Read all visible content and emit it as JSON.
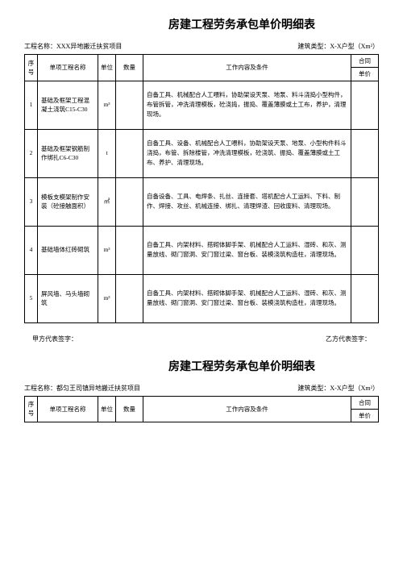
{
  "doc1": {
    "title": "房建工程劳务承包单价明细表",
    "project_label": "工程名称：",
    "project_name": "XXX异地搬迁扶贫项目",
    "building_type_label": "建筑类型：",
    "building_type": "X-X户型（Xm²）",
    "header": {
      "seq": "序号",
      "name": "单项工程名称",
      "unit": "单位",
      "qty": "数量",
      "content": "工作内容及条件",
      "contract": "合同",
      "unit_price": "单价"
    },
    "rows": [
      {
        "seq": "1",
        "name": "基础及框架工程混凝土浇筑C15-C30",
        "unit": "m³",
        "qty": "",
        "content": "自备工具、机械配合人工喂料，协助架设天泵、地泵、料斗浇捣小型构件，布管拆管，冲洗清理模板，砼浇捣，振捣、覆盖薄膜或土工布，养护，清理现场。",
        "price": ""
      },
      {
        "seq": "2",
        "name": "基础及框架钢筋制作绑扎C6-C30",
        "unit": "t",
        "qty": "",
        "content": "自备工具、设备、机械配合人工喂料，协助架设天泵、地泵、小型构件料斗浇捣，布管、拆除楼管，冲洗清理模板，砼浇筑、振捣、覆盖薄膜或土工布、养护、清理现场。",
        "price": ""
      },
      {
        "seq": "3",
        "name": "模板支模架制作安装（砼接触面积）",
        "unit": "㎡",
        "qty": "",
        "content": "自备设备、工具、电焊条、扎丝、连接套、塔机配合人工运料、下料、制作、焊接、攻丝、机械连接、绑扎、清理焊渣、回收废料、清理现场。",
        "price": ""
      },
      {
        "seq": "4",
        "name": "基础墙体红砖砌筑",
        "unit": "m³",
        "qty": "",
        "content": "自备工具、内架材料、搭砌体脚手架、机械配合人工运料、湿砖、和灰、测量放线、砌门窗洞、安门窗过梁、窗台板、装模浇筑构造柱，清理现场。",
        "price": ""
      },
      {
        "seq": "5",
        "name": "屏风墙、马头墙砌筑",
        "unit": "m³",
        "qty": "",
        "content": "自备工具、内架材料、搭砌体脚手架、机械配合人工运料、湿砖、和灰、测量放线、砌门窗洞、安门窗过梁、窗台板、装模浇筑构造柱，清理现场。",
        "price": ""
      }
    ],
    "sign_a": "甲方代表签字：",
    "sign_b": "乙方代表签字："
  },
  "doc2": {
    "title": "房建工程劳务承包单价明细表",
    "project_label": "工程名称：",
    "project_name": "都匀王司镇异地搬迁扶贫项目",
    "building_type_label": "建筑类型：",
    "building_type": "X-X户型（Xm²）"
  }
}
